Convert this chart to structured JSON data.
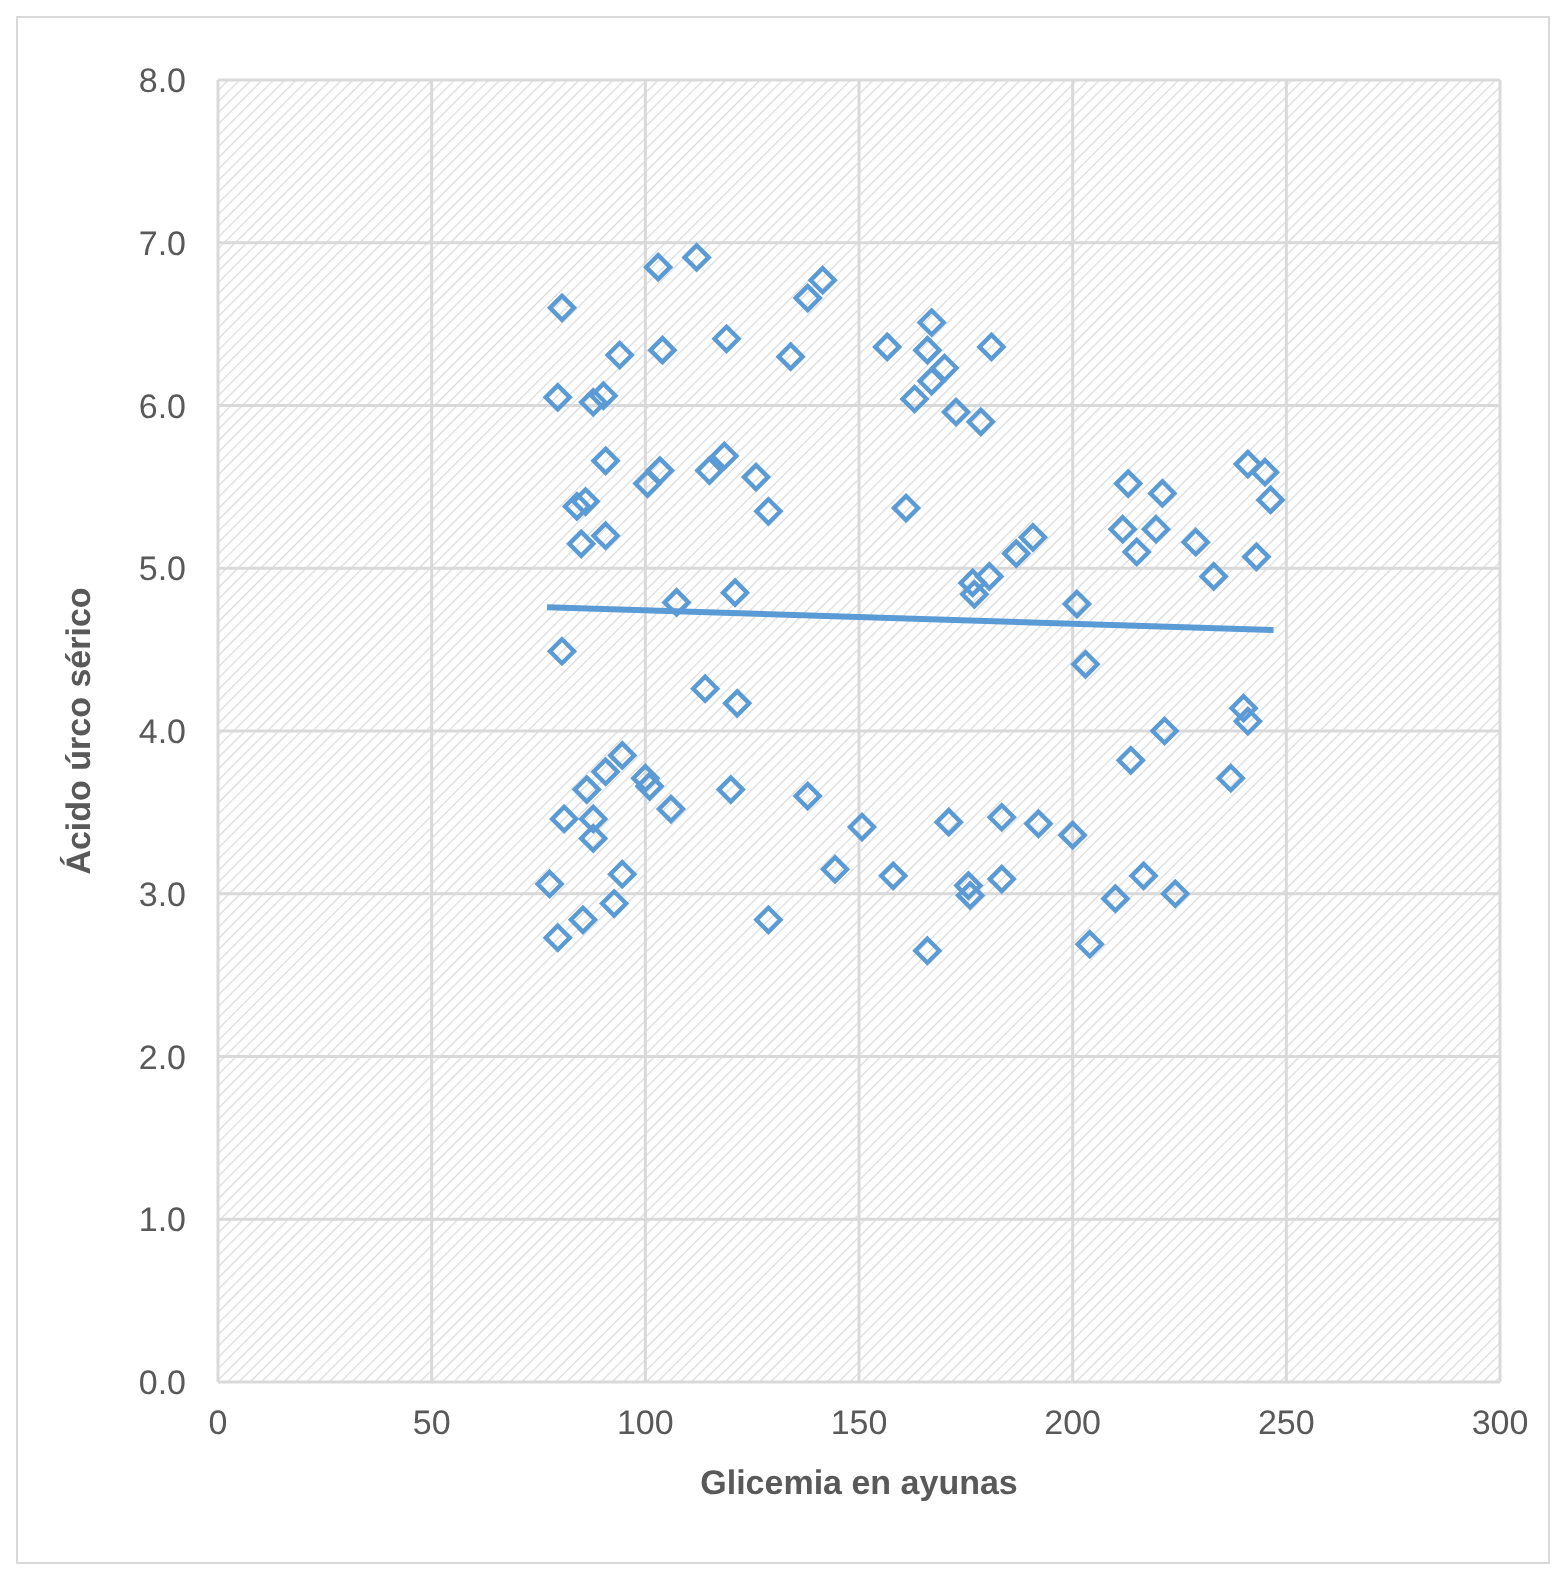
{
  "chart_data": {
    "type": "scatter",
    "xlabel": "Glicemia en ayunas",
    "ylabel": "Ácido úrco sérico",
    "xlim": [
      0,
      300
    ],
    "xticks": [
      0,
      50,
      100,
      150,
      200,
      250,
      300
    ],
    "ylim": [
      0,
      8
    ],
    "yticks": [
      {
        "value": 0,
        "label": "0.0"
      },
      {
        "value": 1,
        "label": "1.0"
      },
      {
        "value": 2,
        "label": "2.0"
      },
      {
        "value": 3,
        "label": "3.0"
      },
      {
        "value": 4,
        "label": "4.0"
      },
      {
        "value": 5,
        "label": "5.0"
      },
      {
        "value": 6,
        "label": "6.0"
      },
      {
        "value": 7,
        "label": "7.0"
      },
      {
        "value": 8,
        "label": "8.0"
      }
    ],
    "grid": true,
    "marker": "diamond",
    "series": [
      {
        "color": "#5b9bd5",
        "x": [
          80.5,
          103,
          112,
          94,
          104,
          119,
          134,
          138,
          141.5,
          79.5,
          87.8,
          90.2,
          156.6,
          167,
          166,
          170,
          167,
          163,
          181,
          172.7,
          178.5,
          90.7,
          86,
          84,
          90.7,
          85,
          103.4,
          100.5,
          115,
          118.5,
          125.9,
          128.8,
          161,
          107.3,
          121,
          80.5,
          114,
          121.5,
          94.6,
          90.7,
          86.3,
          100,
          101,
          106,
          81,
          87.8,
          87.8,
          120,
          138,
          150.7,
          171,
          183.4,
          192,
          200,
          77.6,
          94.6,
          92.7,
          85.4,
          79.5,
          128.8,
          144.4,
          158,
          166,
          175.6,
          176,
          183.4,
          210,
          216.6,
          224,
          204,
          203,
          221.5,
          213.6,
          240,
          241,
          237,
          213,
          221,
          211.7,
          219.5,
          215,
          228.8,
          233,
          241,
          245,
          246.3,
          243,
          190.7,
          186.8,
          180.5,
          176.6,
          177,
          201
        ],
        "values": [
          6.6,
          6.85,
          6.91,
          6.31,
          6.34,
          6.41,
          6.3,
          6.66,
          6.77,
          6.05,
          6.02,
          6.06,
          6.36,
          6.51,
          6.34,
          6.23,
          6.15,
          6.04,
          6.36,
          5.96,
          5.9,
          5.66,
          5.41,
          5.38,
          5.2,
          5.15,
          5.6,
          5.52,
          5.6,
          5.69,
          5.56,
          5.35,
          5.37,
          4.79,
          4.85,
          4.49,
          4.26,
          4.17,
          3.85,
          3.75,
          3.64,
          3.71,
          3.66,
          3.52,
          3.46,
          3.46,
          3.34,
          3.64,
          3.6,
          3.41,
          3.44,
          3.47,
          3.43,
          3.36,
          3.06,
          3.12,
          2.94,
          2.84,
          2.73,
          2.84,
          3.15,
          3.11,
          2.65,
          3.05,
          2.99,
          3.09,
          2.97,
          3.11,
          3.0,
          2.69,
          4.41,
          4.0,
          3.82,
          4.14,
          4.06,
          3.71,
          5.52,
          5.46,
          5.24,
          5.24,
          5.1,
          5.16,
          4.95,
          5.64,
          5.59,
          5.42,
          5.07,
          5.19,
          5.09,
          4.95,
          4.91,
          4.84,
          4.78
        ]
      },
      {
        "type": "line",
        "marker": "none",
        "color": "#5b9bd5",
        "x": [
          77,
          247
        ],
        "values": [
          4.76,
          4.62
        ]
      }
    ]
  }
}
